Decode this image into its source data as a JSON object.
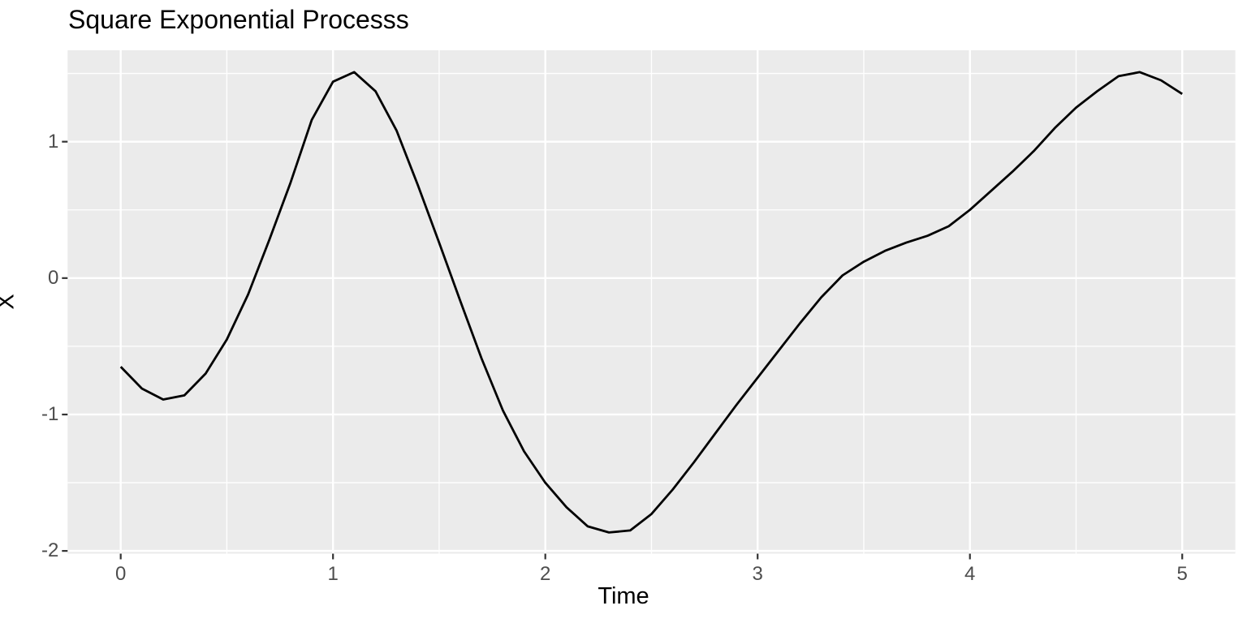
{
  "chart_data": {
    "type": "line",
    "title": "Square Exponential Processs",
    "xlabel": "Time",
    "ylabel": "X",
    "x": [
      0.0,
      0.1,
      0.2,
      0.3,
      0.4,
      0.5,
      0.6,
      0.7,
      0.8,
      0.9,
      1.0,
      1.1,
      1.2,
      1.3,
      1.4,
      1.5,
      1.6,
      1.7,
      1.8,
      1.9,
      2.0,
      2.1,
      2.2,
      2.3,
      2.4,
      2.5,
      2.6,
      2.7,
      2.8,
      2.9,
      3.0,
      3.1,
      3.2,
      3.3,
      3.4,
      3.5,
      3.6,
      3.7,
      3.8,
      3.9,
      4.0,
      4.1,
      4.2,
      4.3,
      4.4,
      4.5,
      4.6,
      4.7,
      4.8,
      4.9,
      5.0
    ],
    "y": [
      -0.65,
      -0.81,
      -0.89,
      -0.86,
      -0.7,
      -0.45,
      -0.12,
      0.28,
      0.7,
      1.16,
      1.44,
      1.51,
      1.37,
      1.08,
      0.68,
      0.26,
      -0.17,
      -0.59,
      -0.97,
      -1.27,
      -1.5,
      -1.68,
      -1.82,
      -1.865,
      -1.85,
      -1.73,
      -1.55,
      -1.35,
      -1.14,
      -0.93,
      -0.73,
      -0.53,
      -0.33,
      -0.14,
      0.02,
      0.12,
      0.2,
      0.26,
      0.31,
      0.38,
      0.5,
      0.64,
      0.78,
      0.93,
      1.1,
      1.25,
      1.37,
      1.48,
      1.51,
      1.45,
      1.35
    ],
    "xlim": [
      -0.25,
      5.25
    ],
    "ylim": [
      -2.02,
      1.67
    ],
    "x_ticks": [
      0,
      1,
      2,
      3,
      4,
      5
    ],
    "y_ticks": [
      -2,
      -1,
      0,
      1
    ],
    "x_minor_breaks": [
      0.5,
      1.5,
      2.5,
      3.5,
      4.5
    ],
    "y_minor_breaks": [
      -1.5,
      -0.5,
      0.5,
      1.5
    ],
    "grid": true,
    "legend_position": "none",
    "colors": {
      "panel_background": "#EBEBEB",
      "grid_line": "#FFFFFF",
      "series_line": "#000000",
      "tick_mark": "#333333",
      "tick_label": "#4D4D4D",
      "title_text": "#000000"
    }
  }
}
